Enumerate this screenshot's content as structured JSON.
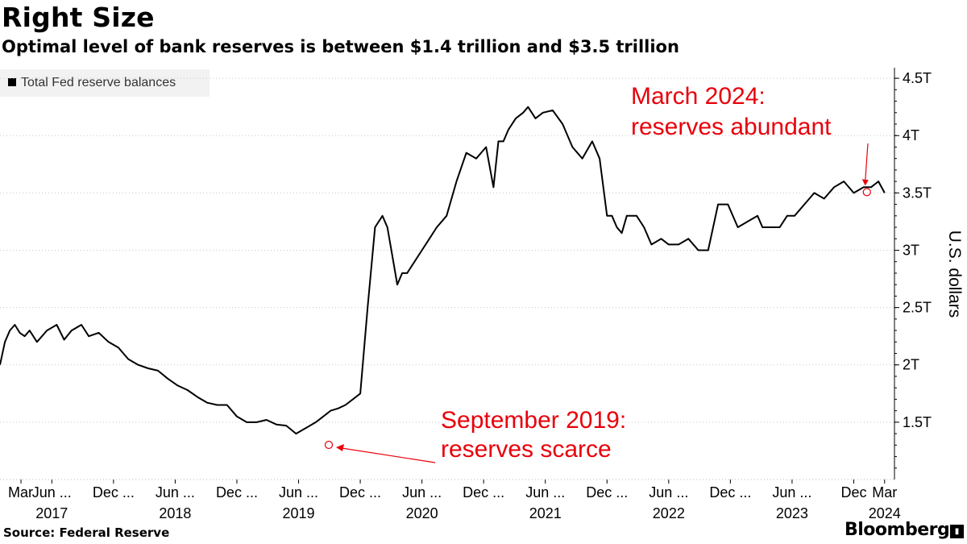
{
  "header": {
    "title": "Right Size",
    "subtitle": "Optimal level of bank reserves is between $1.4 trillion and $3.5 trillion"
  },
  "footer": {
    "source": "Source: Federal Reserve",
    "brand": "Bloomberg"
  },
  "colors": {
    "line": "#000000",
    "annotation": "#e8000b",
    "legend_bg": "#f2f2f2",
    "grid": "#c8c8c8"
  },
  "chart_data": {
    "type": "line",
    "title": "Right Size",
    "subtitle": "Optimal level of bank reserves is between $1.4 trillion and $3.5 trillion",
    "ylabel": "U.S. dollars",
    "ylim": [
      1.0,
      4.55
    ],
    "yticks": [
      1.5,
      2,
      2.5,
      3,
      3.5,
      4,
      4.5
    ],
    "ytick_labels": [
      "1.5T",
      "2T",
      "2.5T",
      "3T",
      "3.5T",
      "4T",
      "4.5T"
    ],
    "xlim": [
      2017.0,
      2024.25
    ],
    "xticks": [
      {
        "x": 2017.17,
        "label": "Mar"
      },
      {
        "x": 2017.42,
        "label": "Jun ..."
      },
      {
        "x": 2017.92,
        "label": "Dec ..."
      },
      {
        "x": 2018.42,
        "label": "Jun ..."
      },
      {
        "x": 2018.92,
        "label": "Dec ..."
      },
      {
        "x": 2019.42,
        "label": "Jun ..."
      },
      {
        "x": 2019.92,
        "label": "Dec ..."
      },
      {
        "x": 2020.42,
        "label": "Jun ..."
      },
      {
        "x": 2020.92,
        "label": "Dec ..."
      },
      {
        "x": 2021.42,
        "label": "Jun ..."
      },
      {
        "x": 2021.92,
        "label": "Dec ..."
      },
      {
        "x": 2022.42,
        "label": "Jun ..."
      },
      {
        "x": 2022.92,
        "label": "Dec ..."
      },
      {
        "x": 2023.42,
        "label": "Jun ..."
      },
      {
        "x": 2023.92,
        "label": "Dec"
      },
      {
        "x": 2024.17,
        "label": "Mar"
      }
    ],
    "year_labels": [
      {
        "x": 2017.42,
        "label": "2017"
      },
      {
        "x": 2018.42,
        "label": "2018"
      },
      {
        "x": 2019.42,
        "label": "2019"
      },
      {
        "x": 2020.42,
        "label": "2020"
      },
      {
        "x": 2021.42,
        "label": "2021"
      },
      {
        "x": 2022.42,
        "label": "2022"
      },
      {
        "x": 2023.42,
        "label": "2023"
      },
      {
        "x": 2024.17,
        "label": "2024"
      }
    ],
    "legend": "Total Fed reserve balances",
    "series": [
      {
        "name": "Total Fed reserve balances",
        "x": [
          2017.0,
          2017.04,
          2017.08,
          2017.12,
          2017.16,
          2017.2,
          2017.24,
          2017.3,
          2017.38,
          2017.46,
          2017.52,
          2017.58,
          2017.66,
          2017.72,
          2017.8,
          2017.88,
          2017.96,
          2018.04,
          2018.12,
          2018.2,
          2018.28,
          2018.36,
          2018.44,
          2018.52,
          2018.6,
          2018.68,
          2018.76,
          2018.84,
          2018.92,
          2019.0,
          2019.08,
          2019.16,
          2019.24,
          2019.32,
          2019.4,
          2019.48,
          2019.56,
          2019.62,
          2019.68,
          2019.74,
          2019.8,
          2019.86,
          2019.92,
          2019.98,
          2020.04,
          2020.1,
          2020.14,
          2020.18,
          2020.22,
          2020.26,
          2020.3,
          2020.36,
          2020.42,
          2020.48,
          2020.54,
          2020.62,
          2020.7,
          2020.78,
          2020.86,
          2020.94,
          2021.0,
          2021.04,
          2021.08,
          2021.12,
          2021.18,
          2021.24,
          2021.28,
          2021.34,
          2021.4,
          2021.48,
          2021.56,
          2021.64,
          2021.72,
          2021.8,
          2021.86,
          2021.92,
          2021.96,
          2022.0,
          2022.04,
          2022.08,
          2022.12,
          2022.16,
          2022.22,
          2022.28,
          2022.36,
          2022.42,
          2022.5,
          2022.58,
          2022.66,
          2022.74,
          2022.82,
          2022.9,
          2022.98,
          2023.06,
          2023.14,
          2023.18,
          2023.22,
          2023.26,
          2023.32,
          2023.38,
          2023.44,
          2023.52,
          2023.6,
          2023.68,
          2023.76,
          2023.84,
          2023.92,
          2024.0,
          2024.06,
          2024.12,
          2024.17
        ],
        "values": [
          2.0,
          2.2,
          2.3,
          2.35,
          2.28,
          2.25,
          2.3,
          2.2,
          2.3,
          2.35,
          2.22,
          2.3,
          2.35,
          2.25,
          2.28,
          2.2,
          2.15,
          2.05,
          2.0,
          1.97,
          1.95,
          1.88,
          1.82,
          1.78,
          1.72,
          1.67,
          1.65,
          1.65,
          1.55,
          1.5,
          1.5,
          1.52,
          1.48,
          1.47,
          1.4,
          1.45,
          1.5,
          1.55,
          1.6,
          1.62,
          1.65,
          1.7,
          1.75,
          2.5,
          3.2,
          3.3,
          3.2,
          2.95,
          2.7,
          2.8,
          2.8,
          2.9,
          3.0,
          3.1,
          3.2,
          3.3,
          3.6,
          3.85,
          3.8,
          3.9,
          3.55,
          3.95,
          3.95,
          4.05,
          4.15,
          4.2,
          4.25,
          4.15,
          4.2,
          4.22,
          4.1,
          3.9,
          3.8,
          3.95,
          3.8,
          3.3,
          3.3,
          3.2,
          3.15,
          3.3,
          3.3,
          3.3,
          3.2,
          3.05,
          3.1,
          3.05,
          3.05,
          3.1,
          3.0,
          3.0,
          3.4,
          3.4,
          3.2,
          3.25,
          3.3,
          3.2,
          3.2,
          3.2,
          3.2,
          3.3,
          3.3,
          3.4,
          3.5,
          3.45,
          3.55,
          3.6,
          3.5,
          3.55,
          3.55,
          3.6,
          3.5
        ]
      }
    ],
    "annotations": [
      {
        "lines": [
          "March 2024:",
          "reserves abundant"
        ],
        "x": 2024.17,
        "y": 3.5
      },
      {
        "lines": [
          "September 2019:",
          "reserves scarce"
        ],
        "x": 2019.72,
        "y": 1.38
      }
    ]
  }
}
